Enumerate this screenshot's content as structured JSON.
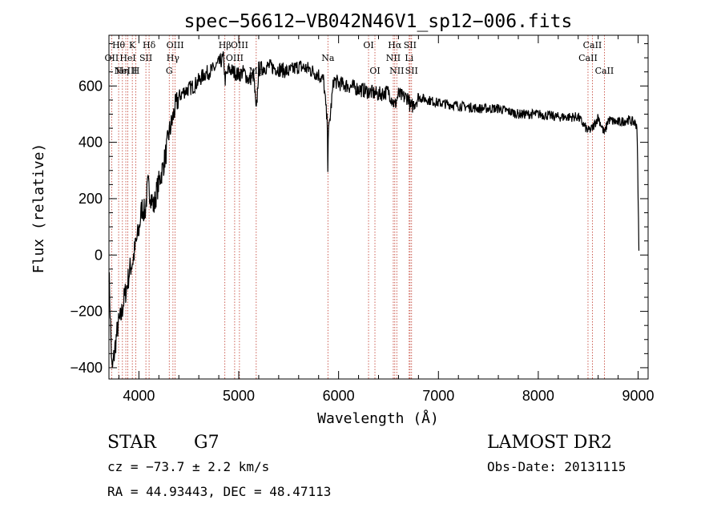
{
  "colors": {
    "spectrum": "#000000",
    "line_markers": "#c0392b",
    "axes": "#000000",
    "background": "#ffffff"
  },
  "info": {
    "object_class": "STAR",
    "subclass": "G7",
    "redshift": "cz = −73.7 ± 2.2 km/s",
    "coords": "RA =  44.93443, DEC =  48.47113",
    "survey": "LAMOST DR2",
    "obs_date": "Obs-Date: 20131115"
  },
  "chart_data": {
    "type": "line",
    "title": "spec−56612−VB042N46V1_sp12−006.fits",
    "xlabel": "Wavelength (Å)",
    "ylabel": "Flux (relative)",
    "xlim": [
      3700,
      9100
    ],
    "ylim": [
      -440,
      780
    ],
    "x_ticks": [
      4000,
      5000,
      6000,
      7000,
      8000,
      9000
    ],
    "x_tick_labels": [
      "4000",
      "5000",
      "6000",
      "7000",
      "8000",
      "9000"
    ],
    "y_ticks": [
      -400,
      -200,
      0,
      200,
      400,
      600
    ],
    "y_tick_labels": [
      "−400",
      "−200",
      "0",
      "200",
      "400",
      "600"
    ],
    "grid": false,
    "series": [
      {
        "x": [
          3700,
          3730,
          3760,
          3790,
          3820,
          3850,
          3880,
          3910,
          3940,
          3970,
          4000,
          4030,
          4060,
          4090,
          4120,
          4150,
          4180,
          4210,
          4240,
          4270,
          4300,
          4330,
          4360,
          4400,
          4450,
          4500,
          4550,
          4600,
          4650,
          4700,
          4750,
          4800,
          4850,
          4861,
          4900,
          4950,
          5000,
          5050,
          5100,
          5150,
          5175,
          5200,
          5300,
          5400,
          5500,
          5600,
          5700,
          5800,
          5850,
          5890,
          5893,
          5896,
          5950,
          6000,
          6100,
          6200,
          6300,
          6400,
          6500,
          6563,
          6600,
          6650,
          6700,
          6720,
          6800,
          6900,
          7000,
          7200,
          7400,
          7600,
          7800,
          8000,
          8200,
          8400,
          8498,
          8542,
          8600,
          8662,
          8700,
          8800,
          8900,
          8960,
          8990,
          9000,
          9010
        ],
        "y": [
          -50,
          -420,
          -330,
          -250,
          -220,
          -160,
          -110,
          -50,
          -20,
          40,
          90,
          170,
          150,
          250,
          210,
          170,
          230,
          270,
          310,
          360,
          430,
          470,
          520,
          560,
          580,
          590,
          600,
          620,
          640,
          650,
          660,
          680,
          700,
          620,
          660,
          650,
          640,
          650,
          620,
          640,
          500,
          660,
          670,
          660,
          650,
          670,
          660,
          640,
          620,
          450,
          250,
          420,
          620,
          610,
          600,
          590,
          580,
          570,
          580,
          530,
          570,
          560,
          560,
          520,
          560,
          550,
          540,
          530,
          520,
          520,
          500,
          500,
          490,
          490,
          440,
          450,
          490,
          430,
          480,
          470,
          480,
          470,
          460,
          200,
          -10
        ]
      }
    ],
    "lines": [
      {
        "wl": 3727,
        "label": "OII",
        "tier": 1
      },
      {
        "wl": 3797,
        "label": "Hθ",
        "tier": 0
      },
      {
        "wl": 3835,
        "label": "Hη",
        "tier": 2
      },
      {
        "wl": 3869,
        "label": "NeIII",
        "tier": 2
      },
      {
        "wl": 3889,
        "label": "HeI",
        "tier": 1
      },
      {
        "wl": 3934,
        "label": "K",
        "tier": 0
      },
      {
        "wl": 3969,
        "label": "H",
        "tier": 2
      },
      {
        "wl": 4070,
        "label": "SII",
        "tier": 1
      },
      {
        "wl": 4102,
        "label": "Hδ",
        "tier": 0
      },
      {
        "wl": 4304,
        "label": "G",
        "tier": 2
      },
      {
        "wl": 4341,
        "label": "Hγ",
        "tier": 1
      },
      {
        "wl": 4363,
        "label": "OIII",
        "tier": 0
      },
      {
        "wl": 4861,
        "label": "Hβ",
        "tier": 0
      },
      {
        "wl": 4959,
        "label": "OIII",
        "tier": 1
      },
      {
        "wl": 5007,
        "label": "OIII",
        "tier": 0
      },
      {
        "wl": 5175,
        "label": "Mg",
        "tier": 2
      },
      {
        "wl": 5893,
        "label": "Na",
        "tier": 1
      },
      {
        "wl": 6300,
        "label": "OI",
        "tier": 0
      },
      {
        "wl": 6364,
        "label": "OI",
        "tier": 2
      },
      {
        "wl": 6548,
        "label": "NII",
        "tier": 1
      },
      {
        "wl": 6563,
        "label": "Hα",
        "tier": 0
      },
      {
        "wl": 6583,
        "label": "NII",
        "tier": 2
      },
      {
        "wl": 6707,
        "label": "Li",
        "tier": 1
      },
      {
        "wl": 6716,
        "label": "SII",
        "tier": 0
      },
      {
        "wl": 6731,
        "label": "SII",
        "tier": 2
      },
      {
        "wl": 8498,
        "label": "CaII",
        "tier": 1
      },
      {
        "wl": 8542,
        "label": "CaII",
        "tier": 0
      },
      {
        "wl": 8662,
        "label": "CaII",
        "tier": 2
      }
    ]
  }
}
